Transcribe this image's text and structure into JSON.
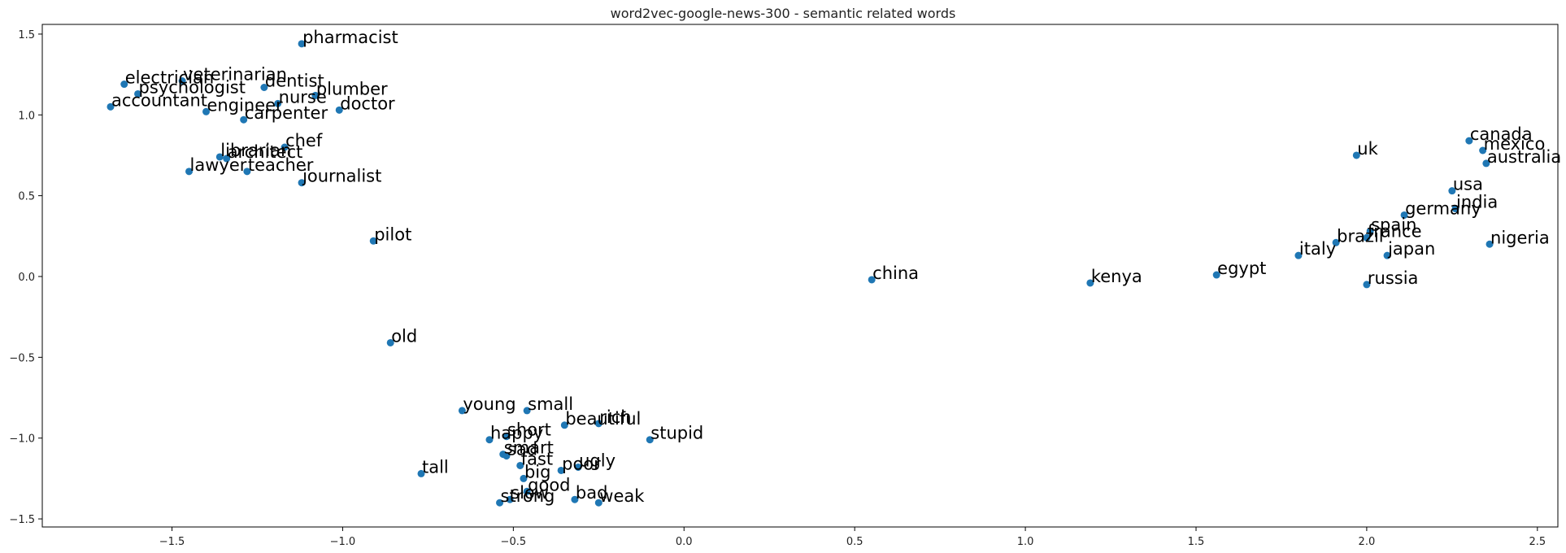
{
  "chart_data": {
    "type": "scatter",
    "title": "word2vec-google-news-300 - semantic related words",
    "xlabel": "",
    "ylabel": "",
    "xlim": [
      -1.88,
      2.56
    ],
    "ylim": [
      -1.55,
      1.56
    ],
    "grid": false,
    "marker_color": "#1f77b4",
    "x_ticks": [
      -1.5,
      -1.0,
      -0.5,
      0.0,
      0.5,
      1.0,
      1.5,
      2.0,
      2.5
    ],
    "x_tick_labels": [
      "−1.5",
      "−1.0",
      "−0.5",
      "0.0",
      "0.5",
      "1.0",
      "1.5",
      "2.0",
      "2.5"
    ],
    "y_ticks": [
      1.5,
      1.0,
      0.5,
      0.0,
      -0.5,
      -1.0,
      -1.5
    ],
    "y_tick_labels": [
      "1.5",
      "1.0",
      "0.5",
      "0.0",
      "−0.5",
      "−1.0",
      "−1.5"
    ],
    "points": [
      {
        "label": "pharmacist",
        "x": -1.12,
        "y": 1.44
      },
      {
        "label": "electrician",
        "x": -1.64,
        "y": 1.19
      },
      {
        "label": "veterinarian",
        "x": -1.47,
        "y": 1.21
      },
      {
        "label": "psychologist",
        "x": -1.6,
        "y": 1.13
      },
      {
        "label": "dentist",
        "x": -1.23,
        "y": 1.17
      },
      {
        "label": "plumber",
        "x": -1.08,
        "y": 1.12
      },
      {
        "label": "nurse",
        "x": -1.19,
        "y": 1.07
      },
      {
        "label": "accountant",
        "x": -1.68,
        "y": 1.05
      },
      {
        "label": "engineer",
        "x": -1.4,
        "y": 1.02
      },
      {
        "label": "doctor",
        "x": -1.01,
        "y": 1.03
      },
      {
        "label": "carpenter",
        "x": -1.29,
        "y": 0.97
      },
      {
        "label": "chef",
        "x": -1.17,
        "y": 0.8
      },
      {
        "label": "librarian",
        "x": -1.36,
        "y": 0.74
      },
      {
        "label": "architect",
        "x": -1.34,
        "y": 0.73
      },
      {
        "label": "lawyer",
        "x": -1.45,
        "y": 0.65
      },
      {
        "label": "teacher",
        "x": -1.28,
        "y": 0.65
      },
      {
        "label": "journalist",
        "x": -1.12,
        "y": 0.58
      },
      {
        "label": "pilot",
        "x": -0.91,
        "y": 0.22
      },
      {
        "label": "old",
        "x": -0.86,
        "y": -0.41
      },
      {
        "label": "young",
        "x": -0.65,
        "y": -0.83
      },
      {
        "label": "small",
        "x": -0.46,
        "y": -0.83
      },
      {
        "label": "beautiful",
        "x": -0.35,
        "y": -0.92
      },
      {
        "label": "rich",
        "x": -0.25,
        "y": -0.91
      },
      {
        "label": "stupid",
        "x": -0.1,
        "y": -1.01
      },
      {
        "label": "happy",
        "x": -0.57,
        "y": -1.01
      },
      {
        "label": "short",
        "x": -0.52,
        "y": -0.99
      },
      {
        "label": "smart",
        "x": -0.53,
        "y": -1.1
      },
      {
        "label": "sad",
        "x": -0.52,
        "y": -1.11
      },
      {
        "label": "fast",
        "x": -0.48,
        "y": -1.17
      },
      {
        "label": "poor",
        "x": -0.36,
        "y": -1.2
      },
      {
        "label": "ugly",
        "x": -0.31,
        "y": -1.18
      },
      {
        "label": "tall",
        "x": -0.77,
        "y": -1.22
      },
      {
        "label": "big",
        "x": -0.47,
        "y": -1.25
      },
      {
        "label": "good",
        "x": -0.46,
        "y": -1.33
      },
      {
        "label": "slow",
        "x": -0.51,
        "y": -1.38
      },
      {
        "label": "strong",
        "x": -0.54,
        "y": -1.4
      },
      {
        "label": "bad",
        "x": -0.32,
        "y": -1.38
      },
      {
        "label": "weak",
        "x": -0.25,
        "y": -1.4
      },
      {
        "label": "china",
        "x": 0.55,
        "y": -0.02
      },
      {
        "label": "kenya",
        "x": 1.19,
        "y": -0.04
      },
      {
        "label": "egypt",
        "x": 1.56,
        "y": 0.01
      },
      {
        "label": "italy",
        "x": 1.8,
        "y": 0.13
      },
      {
        "label": "brazil",
        "x": 1.91,
        "y": 0.21
      },
      {
        "label": "spain",
        "x": 2.01,
        "y": 0.28
      },
      {
        "label": "france",
        "x": 2.0,
        "y": 0.24
      },
      {
        "label": "japan",
        "x": 2.06,
        "y": 0.13
      },
      {
        "label": "russia",
        "x": 2.0,
        "y": -0.05
      },
      {
        "label": "uk",
        "x": 1.97,
        "y": 0.75
      },
      {
        "label": "germany",
        "x": 2.11,
        "y": 0.38
      },
      {
        "label": "usa",
        "x": 2.25,
        "y": 0.53
      },
      {
        "label": "india",
        "x": 2.26,
        "y": 0.42
      },
      {
        "label": "canada",
        "x": 2.3,
        "y": 0.84
      },
      {
        "label": "mexico",
        "x": 2.34,
        "y": 0.78
      },
      {
        "label": "australia",
        "x": 2.35,
        "y": 0.7
      },
      {
        "label": "nigeria",
        "x": 2.36,
        "y": 0.2
      }
    ]
  }
}
